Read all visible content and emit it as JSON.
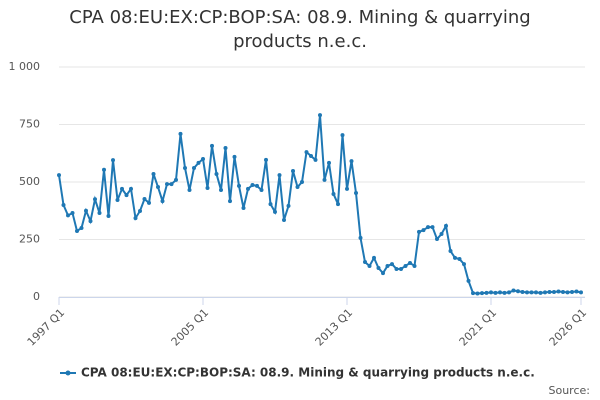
{
  "chart_data": {
    "type": "line",
    "title": "CPA 08:EU:EX:CP:BOP:SA: 08.9. Mining & quarrying products n.e.c.",
    "source": "Source:",
    "categories": [
      "1997 Q1",
      null,
      null,
      null,
      null,
      null,
      null,
      null,
      null,
      null,
      null,
      null,
      null,
      null,
      null,
      null,
      null,
      null,
      null,
      null,
      null,
      null,
      null,
      null,
      null,
      null,
      null,
      null,
      null,
      null,
      null,
      null,
      "2005 Q1",
      null,
      null,
      null,
      null,
      null,
      null,
      null,
      null,
      null,
      null,
      null,
      null,
      null,
      null,
      null,
      null,
      null,
      null,
      null,
      null,
      null,
      null,
      null,
      null,
      null,
      null,
      null,
      null,
      null,
      null,
      null,
      "2013 Q1",
      null,
      null,
      null,
      null,
      null,
      null,
      null,
      null,
      null,
      null,
      null,
      null,
      null,
      null,
      null,
      null,
      null,
      null,
      null,
      null,
      null,
      null,
      null,
      null,
      null,
      null,
      null,
      null,
      null,
      null,
      null,
      "2021 Q1",
      null,
      null,
      null,
      null,
      null,
      null,
      null,
      null,
      null,
      null,
      null,
      null,
      null,
      null,
      null,
      null,
      null,
      null,
      null,
      "2026 Q1"
    ],
    "series": [
      {
        "name": "CPA 08:EU:EX:CP:BOP:SA: 08.9. Mining & quarrying products n.e.c.",
        "color": "#1f78b4",
        "values": [
          530,
          400,
          355,
          365,
          287,
          300,
          375,
          330,
          425,
          365,
          553,
          352,
          595,
          422,
          470,
          443,
          470,
          343,
          374,
          426,
          409,
          535,
          478,
          417,
          491,
          491,
          509,
          709,
          561,
          465,
          561,
          583,
          600,
          474,
          657,
          535,
          465,
          648,
          417,
          609,
          483,
          387,
          470,
          487,
          483,
          465,
          596,
          404,
          370,
          530,
          335,
          396,
          548,
          478,
          500,
          630,
          613,
          596,
          791,
          509,
          583,
          448,
          404,
          704,
          470,
          591,
          452,
          257,
          152,
          135,
          170,
          126,
          104,
          135,
          143,
          122,
          122,
          135,
          148,
          135,
          283,
          291,
          304,
          304,
          252,
          274,
          309,
          200,
          170,
          165,
          143,
          70,
          17,
          15,
          17,
          18,
          20,
          18,
          20,
          18,
          20,
          28,
          25,
          22,
          20,
          20,
          20,
          18,
          20,
          22,
          22,
          24,
          22,
          20,
          22,
          24,
          20
        ]
      }
    ],
    "ylim": [
      0,
      1000
    ],
    "yticks": [
      0,
      250,
      500,
      750,
      {
        "value": 1000,
        "label": "1 000"
      }
    ],
    "grid": true
  }
}
